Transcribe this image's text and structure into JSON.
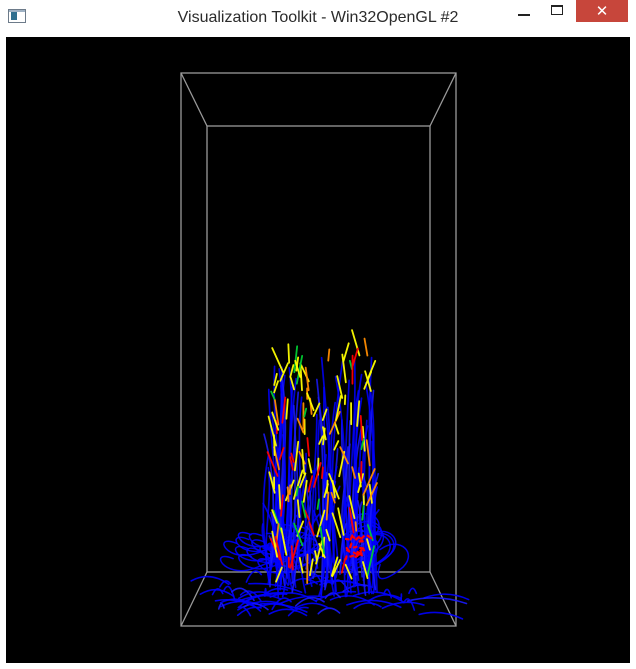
{
  "window": {
    "title": "Visualization Toolkit - Win32OpenGL #2",
    "close_glyph": "✕",
    "icons": {
      "app": "vtk-window-icon",
      "minimize": "minimize-icon",
      "maximize": "maximize-icon",
      "close": "close-icon"
    }
  },
  "render": {
    "background": "#000000",
    "outline_color": "#9a9a9a",
    "streamline_colors": [
      "#0000ff",
      "#1a1aff",
      "#ffff00",
      "#ff8c00",
      "#ff0000",
      "#00cc33"
    ]
  }
}
